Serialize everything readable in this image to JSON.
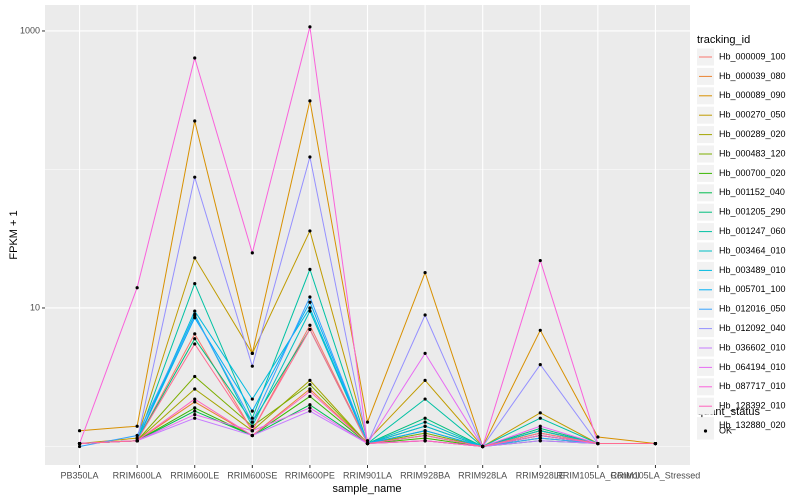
{
  "chart_data": {
    "type": "line",
    "x_label": "sample_name",
    "y_label": "FPKM + 1",
    "categories": [
      "PB350LA",
      "RRIM600LA",
      "RRIM600LE",
      "RRIM600SE",
      "RRIM600PE",
      "RRIM901LA",
      "RRIM928BA",
      "RRIM928LA",
      "RRIM928LE",
      "RRIM105LA_Control",
      "RRIM105LA_Stressed"
    ],
    "log_y": true,
    "grid": true,
    "ylim": [
      0.735,
      1540
    ],
    "yticks": [
      10,
      1000
    ],
    "minor_yticks": [
      1,
      100
    ],
    "legend_title": "tracking_id",
    "legend_position": "right",
    "shape_legend_title": "quant_status",
    "shape_legend_entries": [
      "OK"
    ],
    "point_color": "#000000",
    "series": [
      {
        "name": "Hb_000009_100",
        "color": "#F8766D",
        "values": [
          1.05,
          1.1,
          6.5,
          1.3,
          7.5,
          1.05,
          1.2,
          1,
          1.3,
          1.05,
          1.05
        ]
      },
      {
        "name": "Hb_000039_080",
        "color": "#EA8331",
        "values": [
          1.05,
          1.1,
          2.1,
          1.2,
          2.6,
          1.05,
          1.3,
          1,
          1.2,
          1.05,
          1.05
        ]
      },
      {
        "name": "Hb_000089_090",
        "color": "#D89000",
        "values": [
          1.3,
          1.4,
          224,
          4.7,
          313,
          1.5,
          18,
          1,
          6.9,
          1.17,
          1.05
        ]
      },
      {
        "name": "Hb_000270_050",
        "color": "#C09B00",
        "values": [
          1.05,
          1.15,
          23,
          4.7,
          36,
          1.1,
          3.0,
          1,
          1.75,
          1.05,
          1.05
        ]
      },
      {
        "name": "Hb_000289_020",
        "color": "#A3A500",
        "values": [
          1.05,
          1.1,
          2.6,
          1.3,
          3.0,
          1.05,
          1.4,
          1,
          1.3,
          1.05,
          1.05
        ]
      },
      {
        "name": "Hb_000483_120",
        "color": "#7CAE00",
        "values": [
          1.05,
          1.1,
          3.2,
          1.4,
          2.8,
          1.05,
          1.25,
          1,
          1.25,
          1.05,
          1.05
        ]
      },
      {
        "name": "Hb_000700_020",
        "color": "#39B600",
        "values": [
          1.05,
          1.1,
          1.9,
          1.2,
          2.3,
          1.05,
          1.15,
          1,
          1.15,
          1.05,
          1.05
        ]
      },
      {
        "name": "Hb_001152_040",
        "color": "#00BB4E",
        "values": [
          1.05,
          1.1,
          1.8,
          1.2,
          2.0,
          1.05,
          1.1,
          1,
          1.1,
          1.05,
          1.05
        ]
      },
      {
        "name": "Hb_001205_290",
        "color": "#00BF7D",
        "values": [
          1.05,
          1.1,
          6.0,
          1.5,
          7.0,
          1.05,
          1.6,
          1,
          1.35,
          1.05,
          1.05
        ]
      },
      {
        "name": "Hb_001247_060",
        "color": "#00C1A3",
        "values": [
          1.05,
          1.1,
          15,
          1.6,
          19,
          1.05,
          2.2,
          1,
          1.6,
          1.05,
          1.05
        ]
      },
      {
        "name": "Hb_003464_010",
        "color": "#00BFC4",
        "values": [
          1.05,
          1.1,
          9.0,
          1.4,
          9.5,
          1.05,
          1.5,
          1,
          1.3,
          1.05,
          1.05
        ]
      },
      {
        "name": "Hb_003489_010",
        "color": "#00BAE0",
        "values": [
          1.05,
          1.1,
          9.5,
          2.2,
          10,
          1.05,
          1.4,
          1,
          1.2,
          1.05,
          1.05
        ]
      },
      {
        "name": "Hb_005701_100",
        "color": "#00B0F6",
        "values": [
          1.05,
          1.1,
          8.5,
          1.8,
          11,
          1.05,
          1.3,
          1,
          1.2,
          1.05,
          1.05
        ]
      },
      {
        "name": "Hb_012016_050",
        "color": "#35A2FF",
        "values": [
          1.0,
          1.2,
          8.8,
          1.5,
          12,
          1.05,
          1.2,
          1,
          1.15,
          1.05,
          1.05
        ]
      },
      {
        "name": "Hb_012092_040",
        "color": "#9590FF",
        "values": [
          1.05,
          1.1,
          88,
          3.8,
          123,
          1.05,
          8.9,
          1,
          3.9,
          1.05,
          1.05
        ]
      },
      {
        "name": "Hb_036602_010",
        "color": "#C77CFF",
        "values": [
          1.05,
          1.1,
          1.6,
          1.2,
          1.8,
          1.05,
          1.1,
          1,
          1.1,
          1.05,
          1.05
        ]
      },
      {
        "name": "Hb_064194_010",
        "color": "#E76BF3",
        "values": [
          1.05,
          1.1,
          1.7,
          1.3,
          1.9,
          1.05,
          4.7,
          1,
          1.4,
          1.05,
          1.05
        ]
      },
      {
        "name": "Hb_087717_010",
        "color": "#FA62DB",
        "values": [
          1.05,
          14,
          638,
          25,
          1070,
          1.05,
          1.1,
          1,
          22,
          1.05,
          1.05
        ]
      },
      {
        "name": "Hb_128392_010",
        "color": "#FF62BC",
        "values": [
          1.05,
          1.1,
          2.2,
          1.2,
          2.5,
          1.05,
          1.1,
          1,
          1.2,
          1.05,
          1.05
        ]
      },
      {
        "name": "Hb_132880_020",
        "color": "#FF6C91",
        "values": [
          1.05,
          1.1,
          5.5,
          1.3,
          7.0,
          1.05,
          1.2,
          1,
          1.25,
          1.05,
          1.05
        ]
      }
    ]
  }
}
